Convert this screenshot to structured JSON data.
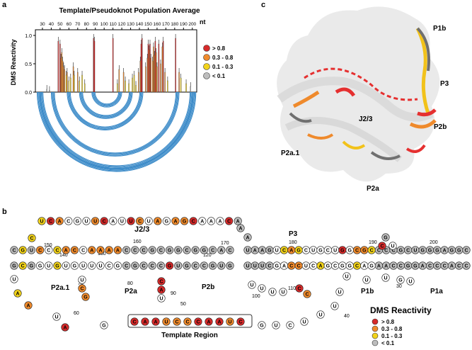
{
  "panel_labels": {
    "a": "a",
    "b": "b",
    "c": "c"
  },
  "chart_data": {
    "type": "bar",
    "title": "Template/Pseudoknot Population Average",
    "xlabel": "nt",
    "ylabel": "DMS Reactivity",
    "ylim": [
      0,
      1.1
    ],
    "yticks": [
      "0.0",
      "0.5",
      "1.0"
    ],
    "xticks": [
      30,
      40,
      50,
      60,
      70,
      80,
      90,
      100,
      110,
      120,
      130,
      140,
      150,
      160,
      170,
      180,
      190,
      200
    ],
    "x_range": [
      22,
      205
    ],
    "legend_title": "",
    "legend": [
      {
        "label": "> 0.8",
        "color": "#d62a2a"
      },
      {
        "label": "0.3 - 0.8",
        "color": "#ef8a2c"
      },
      {
        "label": "0.1 - 0.3",
        "color": "#f2d31a"
      },
      {
        "label": "< 0.1",
        "color": "#bdbdbd"
      }
    ],
    "bars": [
      {
        "x": 35,
        "v": 0.05
      },
      {
        "x": 38,
        "v": 0.03
      },
      {
        "x": 48,
        "v": 0.9
      },
      {
        "x": 50,
        "v": 0.85
      },
      {
        "x": 51,
        "v": 0.6
      },
      {
        "x": 52,
        "v": 0.7
      },
      {
        "x": 53,
        "v": 0.55
      },
      {
        "x": 54,
        "v": 0.45
      },
      {
        "x": 55,
        "v": 0.4
      },
      {
        "x": 57,
        "v": 0.3
      },
      {
        "x": 58,
        "v": 0.35
      },
      {
        "x": 60,
        "v": 0.2
      },
      {
        "x": 62,
        "v": 0.25
      },
      {
        "x": 65,
        "v": 0.45
      },
      {
        "x": 66,
        "v": 0.3
      },
      {
        "x": 70,
        "v": 0.35
      },
      {
        "x": 72,
        "v": 0.2
      },
      {
        "x": 75,
        "v": 0.3
      },
      {
        "x": 78,
        "v": 0.15
      },
      {
        "x": 88,
        "v": 0.95
      },
      {
        "x": 89,
        "v": 0.9
      },
      {
        "x": 110,
        "v": 0.95
      },
      {
        "x": 115,
        "v": 0.15
      },
      {
        "x": 117,
        "v": 0.4
      },
      {
        "x": 122,
        "v": 0.35
      },
      {
        "x": 124,
        "v": 0.2
      },
      {
        "x": 128,
        "v": 0.15
      },
      {
        "x": 132,
        "v": 0.25
      },
      {
        "x": 134,
        "v": 0.3
      },
      {
        "x": 136,
        "v": 0.12
      },
      {
        "x": 139,
        "v": 0.35
      },
      {
        "x": 141,
        "v": 0.55
      },
      {
        "x": 142,
        "v": 0.85
      },
      {
        "x": 143,
        "v": 0.95
      },
      {
        "x": 147,
        "v": 0.45
      },
      {
        "x": 149,
        "v": 0.6
      },
      {
        "x": 150,
        "v": 0.85
      },
      {
        "x": 151,
        "v": 0.75
      },
      {
        "x": 152,
        "v": 0.85
      },
      {
        "x": 153,
        "v": 0.6
      },
      {
        "x": 155,
        "v": 0.55
      },
      {
        "x": 156,
        "v": 0.8
      },
      {
        "x": 157,
        "v": 0.65
      },
      {
        "x": 158,
        "v": 0.9
      },
      {
        "x": 159,
        "v": 0.7
      },
      {
        "x": 160,
        "v": 0.45
      },
      {
        "x": 162,
        "v": 0.85
      },
      {
        "x": 164,
        "v": 0.5
      },
      {
        "x": 166,
        "v": 0.8
      },
      {
        "x": 167,
        "v": 0.9
      },
      {
        "x": 169,
        "v": 0.35
      },
      {
        "x": 172,
        "v": 0.2
      },
      {
        "x": 181,
        "v": 0.95
      },
      {
        "x": 185,
        "v": 0.35
      },
      {
        "x": 187,
        "v": 0.25
      },
      {
        "x": 193,
        "v": 0.15
      },
      {
        "x": 198,
        "v": 0.1
      }
    ],
    "arcs": [
      {
        "i": 24,
        "j": 204
      },
      {
        "i": 27,
        "j": 201
      },
      {
        "i": 40,
        "j": 185
      },
      {
        "i": 58,
        "j": 144
      },
      {
        "i": 72,
        "j": 132
      },
      {
        "i": 86,
        "j": 120
      }
    ]
  },
  "panel_b": {
    "j23_label": "J2/3",
    "p3_label": "P3",
    "p2a1_label": "P2a.1",
    "p2a_label": "P2a",
    "p2b_label": "P2b",
    "p1b_label": "P1b",
    "p1a_label": "P1a",
    "template_label": "Template Region",
    "legend_title": "DMS Reactivity",
    "numbers": [
      "150",
      "160",
      "170",
      "140",
      "130",
      "120",
      "180",
      "190",
      "200",
      "70",
      "80",
      "90",
      "100",
      "110",
      "60",
      "50",
      "40",
      "30"
    ],
    "top_strand": [
      "U",
      "C",
      "A",
      "C",
      "G",
      "U",
      "U",
      "C",
      "A",
      "U",
      "U",
      "C",
      "U",
      "A",
      "G",
      "A",
      "G",
      "C",
      "A",
      "A",
      "A",
      "C",
      "A"
    ],
    "template_seq": [
      "C",
      "A",
      "A",
      "U",
      "C",
      "C",
      "C",
      "A",
      "A",
      "U",
      "C"
    ],
    "p3_top": [
      "U",
      "A",
      "A",
      "G",
      "U",
      "C",
      "A",
      "G",
      "C",
      "U",
      "G",
      "C",
      "U",
      "G",
      "G",
      "C",
      "G",
      "C",
      "C",
      "C",
      "C",
      "G",
      "C",
      "U",
      "G",
      "G",
      "G",
      "A",
      "G",
      "G",
      "C"
    ],
    "p3_bottom": [
      "U",
      "U",
      "U",
      "C",
      "G",
      "A",
      "C",
      "C",
      "U",
      "C",
      "A",
      "G",
      "C",
      "G",
      "G",
      "C",
      "A",
      "G",
      "A",
      "A",
      "C",
      "C",
      "G",
      "G",
      "A",
      "C",
      "C",
      "C",
      "A",
      "C",
      "C"
    ]
  },
  "panel_c": {
    "labels": [
      "P1b",
      "P3",
      "J2/3",
      "P2b",
      "P2a.1",
      "P2a"
    ]
  }
}
